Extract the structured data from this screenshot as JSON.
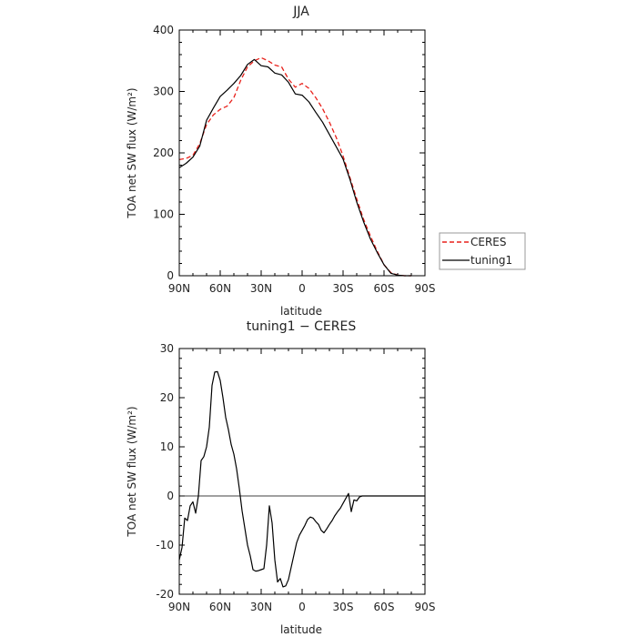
{
  "chart_data": [
    {
      "type": "line",
      "title": "JJA",
      "xlabel": "latitude",
      "ylabel": "TOA net SW flux (W/m²)",
      "xlim": [
        90,
        -90
      ],
      "ylim": [
        0,
        400
      ],
      "xticks": [
        90,
        60,
        30,
        0,
        -30,
        -60,
        -90
      ],
      "xticklabels": [
        "90N",
        "60N",
        "30N",
        "0",
        "30S",
        "60S",
        "90S"
      ],
      "yticks": [
        0,
        100,
        200,
        300,
        400
      ],
      "grid": false,
      "legend": "right",
      "series": [
        {
          "name": "CERES",
          "color": "#e8211b",
          "dash": "dashed",
          "x": [
            90,
            85,
            80,
            75,
            70,
            65,
            60,
            55,
            50,
            45,
            40,
            35,
            30,
            25,
            20,
            15,
            10,
            5,
            0,
            -5,
            -10,
            -15,
            -20,
            -25,
            -30,
            -35,
            -40,
            -45,
            -50,
            -55,
            -60,
            -65,
            -70,
            -75,
            -80
          ],
          "y": [
            189,
            191,
            196,
            215,
            246,
            262,
            271,
            276,
            290,
            318,
            340,
            350,
            355,
            350,
            343,
            340,
            320,
            307,
            313,
            305,
            290,
            272,
            250,
            225,
            195,
            160,
            125,
            92,
            65,
            40,
            18,
            5,
            1,
            0,
            0
          ]
        },
        {
          "name": "tuning1",
          "color": "#000000",
          "dash": "solid",
          "x": [
            90,
            85,
            80,
            75,
            70,
            65,
            60,
            55,
            50,
            45,
            40,
            35,
            30,
            25,
            20,
            15,
            10,
            5,
            0,
            -5,
            -10,
            -15,
            -20,
            -25,
            -30,
            -35,
            -40,
            -45,
            -50,
            -55,
            -60,
            -65,
            -70,
            -75,
            -80
          ],
          "y": [
            176,
            183,
            193,
            211,
            253,
            273,
            292,
            302,
            313,
            326,
            344,
            352,
            342,
            340,
            330,
            327,
            315,
            296,
            294,
            283,
            266,
            250,
            230,
            210,
            190,
            157,
            120,
            88,
            60,
            38,
            18,
            4,
            1,
            0,
            0
          ]
        }
      ]
    },
    {
      "type": "line",
      "title": "tuning1 − CERES",
      "xlabel": "latitude",
      "ylabel": "TOA net SW flux (W/m²)",
      "xlim": [
        90,
        -90
      ],
      "ylim": [
        -20,
        30
      ],
      "xticks": [
        90,
        60,
        30,
        0,
        -30,
        -60,
        -90
      ],
      "xticklabels": [
        "90N",
        "60N",
        "30N",
        "0",
        "30S",
        "60S",
        "90S"
      ],
      "yticks": [
        -20,
        -10,
        0,
        10,
        20,
        30
      ],
      "grid": false,
      "series": [
        {
          "name": "",
          "color": "#000000",
          "dash": "solid",
          "x": [
            90,
            88,
            86,
            84,
            82,
            80,
            78,
            76,
            74,
            72,
            70,
            68,
            66,
            64,
            62,
            60,
            58,
            56,
            54,
            52,
            50,
            48,
            46,
            44,
            42,
            40,
            38,
            36,
            34,
            32,
            30,
            28,
            26,
            24,
            22,
            20,
            18,
            16,
            14,
            12,
            10,
            8,
            6,
            4,
            2,
            0,
            -2,
            -4,
            -6,
            -8,
            -10,
            -12,
            -14,
            -16,
            -18,
            -20,
            -22,
            -24,
            -26,
            -28,
            -30,
            -32,
            -34,
            -36,
            -38,
            -40,
            -42,
            -44,
            -46,
            -48,
            -50,
            -52,
            -54,
            -56,
            -58,
            -60,
            -62,
            -64,
            -66,
            -68,
            -70,
            -72,
            -74,
            -76,
            -78,
            -80,
            -82,
            -84,
            -86,
            -88,
            -90
          ],
          "y": [
            -13,
            -10.5,
            -4.5,
            -5,
            -2,
            -1.2,
            -3.5,
            0,
            7.2,
            8,
            10,
            14,
            22.5,
            25.2,
            25.3,
            23.5,
            20,
            16,
            13.5,
            10.5,
            8.5,
            5.5,
            1.5,
            -3,
            -6.5,
            -10,
            -12.2,
            -15,
            -15.3,
            -15.2,
            -15,
            -14.8,
            -10,
            -2,
            -5.5,
            -13,
            -17.5,
            -16.8,
            -18.5,
            -18.3,
            -17,
            -14.5,
            -12,
            -9.5,
            -8,
            -7,
            -6,
            -4.8,
            -4.3,
            -4.5,
            -5.2,
            -5.8,
            -7,
            -7.5,
            -6.7,
            -5.8,
            -5,
            -4,
            -3.2,
            -2.5,
            -1.5,
            -0.5,
            0.5,
            -3.2,
            -0.8,
            -1,
            -0.2,
            0,
            0,
            0,
            0,
            0,
            0,
            0,
            0,
            0,
            0,
            0,
            0,
            0,
            0,
            0,
            0,
            0,
            0,
            0,
            0,
            0,
            0,
            0,
            0
          ]
        }
      ]
    }
  ]
}
